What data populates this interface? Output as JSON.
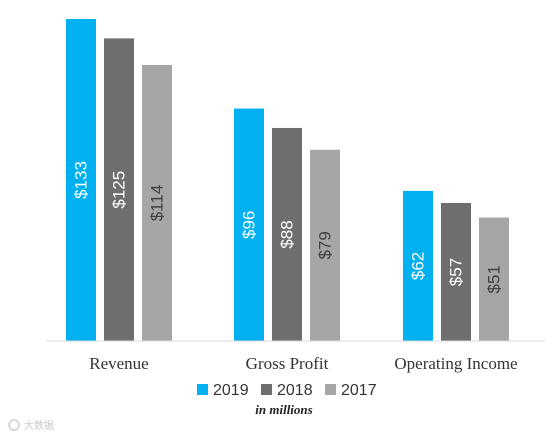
{
  "chart_data": {
    "type": "bar",
    "categories": [
      "Revenue",
      "Gross Profit",
      "Operating Income"
    ],
    "series": [
      {
        "name": "2019",
        "values": [
          133,
          96,
          62
        ],
        "labels": [
          "$133",
          "$96",
          "$62"
        ],
        "color": "#00B0F0",
        "label_color": "#FFFFFF"
      },
      {
        "name": "2018",
        "values": [
          125,
          88,
          57
        ],
        "labels": [
          "$125",
          "$88",
          "$57"
        ],
        "color": "#6E6E6E",
        "label_color": "#FFFFFF"
      },
      {
        "name": "2017",
        "values": [
          114,
          79,
          51
        ],
        "labels": [
          "$114",
          "$79",
          "$51"
        ],
        "color": "#A6A6A6",
        "label_color": "#404040"
      }
    ],
    "ylim": [
      0,
      140
    ],
    "grid": false,
    "legend_position": "bottom",
    "note": "in millions",
    "axis_color": "#D9D9D9"
  },
  "watermark": "大数据"
}
